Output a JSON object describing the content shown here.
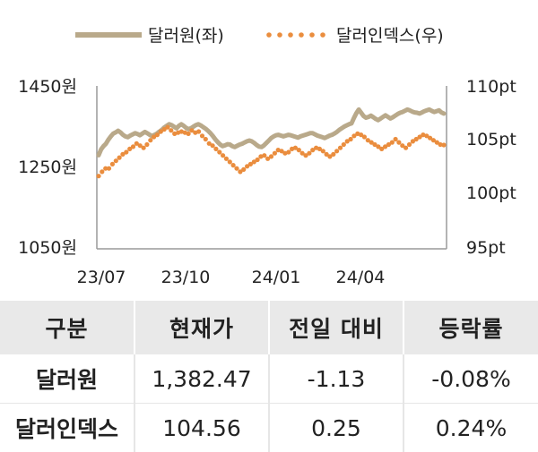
{
  "chart_data": {
    "type": "line",
    "legend_position": "top",
    "grid": false,
    "x_ticks": [
      "23/07",
      "23/10",
      "24/01",
      "24/04"
    ],
    "left_axis": {
      "range": [
        1050,
        1450
      ],
      "ticks": [
        "1450원",
        "1250원",
        "1050원"
      ]
    },
    "right_axis": {
      "range": [
        95,
        110
      ],
      "ticks": [
        "110pt",
        "105pt",
        "100pt",
        "95pt"
      ]
    },
    "series": [
      {
        "name": "달러원(좌)",
        "axis": "left",
        "style": "solid",
        "color": "#b9a98a",
        "values": [
          1280,
          1294,
          1302,
          1308,
          1318,
          1326,
          1333,
          1336,
          1340,
          1336,
          1330,
          1326,
          1324,
          1328,
          1331,
          1334,
          1332,
          1329,
          1333,
          1337,
          1334,
          1330,
          1327,
          1330,
          1333,
          1338,
          1342,
          1348,
          1352,
          1356,
          1354,
          1350,
          1346,
          1352,
          1356,
          1352,
          1347,
          1344,
          1346,
          1350,
          1354,
          1356,
          1353,
          1349,
          1345,
          1340,
          1334,
          1327,
          1319,
          1312,
          1306,
          1302,
          1304,
          1307,
          1306,
          1302,
          1300,
          1303,
          1306,
          1308,
          1311,
          1314,
          1316,
          1314,
          1310,
          1305,
          1301,
          1300,
          1304,
          1310,
          1316,
          1322,
          1326,
          1329,
          1330,
          1328,
          1326,
          1328,
          1330,
          1329,
          1327,
          1325,
          1323,
          1326,
          1328,
          1330,
          1332,
          1334,
          1334,
          1331,
          1328,
          1326,
          1324,
          1322,
          1325,
          1328,
          1330,
          1333,
          1337,
          1342,
          1346,
          1350,
          1353,
          1356,
          1358,
          1371,
          1383,
          1392,
          1384,
          1376,
          1372,
          1374,
          1377,
          1373,
          1369,
          1366,
          1370,
          1374,
          1378,
          1374,
          1370,
          1373,
          1377,
          1381,
          1384,
          1386,
          1389,
          1392,
          1390,
          1387,
          1385,
          1384,
          1382,
          1385,
          1388,
          1390,
          1392,
          1389,
          1386,
          1388,
          1390,
          1385,
          1382
        ]
      },
      {
        "name": "달러인덱스(우)",
        "axis": "right",
        "style": "dotted",
        "color": "#ea8d3e",
        "values": [
          101.7,
          102.1,
          102.4,
          102.4,
          102.8,
          103.1,
          103.4,
          103.7,
          103.9,
          104.2,
          104.4,
          104.7,
          104.5,
          104.3,
          104.6,
          105.0,
          105.3,
          105.5,
          105.8,
          106.0,
          106.2,
          105.9,
          105.6,
          105.7,
          105.8,
          105.7,
          105.6,
          105.9,
          105.7,
          105.8,
          105.4,
          105.1,
          104.7,
          104.5,
          104.2,
          103.9,
          103.6,
          103.3,
          103.0,
          102.7,
          102.4,
          102.1,
          102.3,
          102.6,
          102.8,
          103.0,
          103.2,
          103.5,
          103.6,
          103.3,
          103.5,
          103.8,
          104.1,
          104.0,
          103.8,
          103.9,
          104.2,
          104.3,
          104.1,
          103.8,
          103.6,
          103.8,
          104.1,
          104.3,
          104.2,
          104.0,
          103.7,
          103.5,
          103.7,
          104.0,
          104.3,
          104.6,
          104.9,
          105.1,
          105.4,
          105.6,
          105.5,
          105.3,
          105.0,
          104.8,
          104.6,
          104.4,
          104.2,
          104.4,
          104.6,
          104.8,
          105.1,
          104.8,
          104.5,
          104.3,
          104.6,
          104.9,
          105.1,
          105.3,
          105.5,
          105.4,
          105.2,
          105.0,
          104.8,
          104.6,
          104.56
        ]
      }
    ]
  },
  "table": {
    "headers": [
      "구분",
      "현재가",
      "전일 대비",
      "등락률"
    ],
    "rows": [
      [
        "달러원",
        "1,382.47",
        "-1.13",
        "-0.08%"
      ],
      [
        "달러인덱스",
        "104.56",
        "0.25",
        "0.24%"
      ]
    ]
  }
}
